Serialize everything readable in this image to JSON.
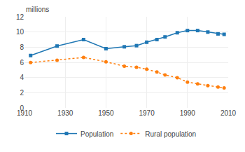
{
  "chart_data": {
    "type": "line",
    "ylabel": "millions",
    "x": [
      1913,
      1926,
      1939,
      1950,
      1959,
      1965,
      1970,
      1975,
      1979,
      1985,
      1990,
      1995,
      2000,
      2005,
      2008
    ],
    "series": [
      {
        "name": "Population",
        "marker": "square",
        "line_style": "solid",
        "values": [
          6.9,
          8.15,
          9.0,
          7.8,
          8.05,
          8.2,
          8.65,
          9.0,
          9.35,
          9.9,
          10.19,
          10.19,
          9.99,
          9.75,
          9.69
        ]
      },
      {
        "name": "Rural population",
        "marker": "circle",
        "line_style": "dotted",
        "values": [
          5.97,
          6.28,
          6.65,
          6.07,
          5.5,
          5.35,
          5.1,
          4.72,
          4.34,
          3.98,
          3.4,
          3.17,
          2.94,
          2.75,
          2.62
        ]
      }
    ],
    "xlim": [
      1910,
      2010
    ],
    "ylim": [
      0,
      12
    ],
    "xticks": [
      1910,
      1930,
      1950,
      1970,
      1990,
      2010
    ],
    "yticks": [
      0,
      2,
      4,
      6,
      8,
      10,
      12
    ],
    "grid": true,
    "legend": "bottom"
  }
}
